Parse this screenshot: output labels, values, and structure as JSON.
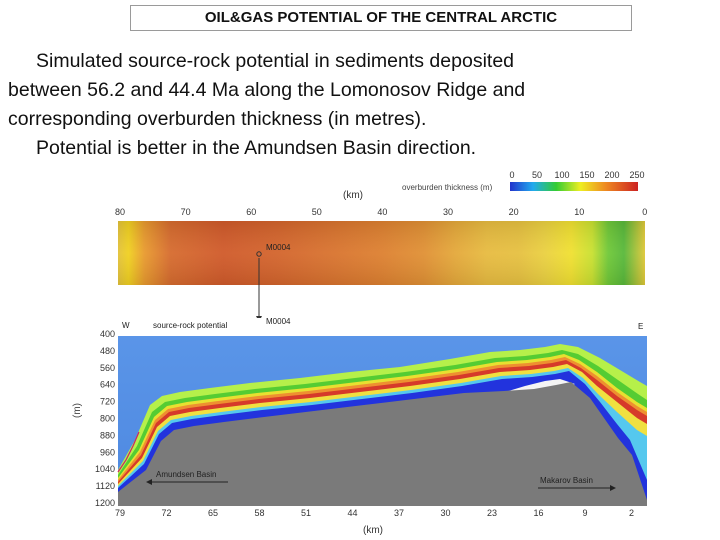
{
  "header": {
    "title": "OIL&GAS POTENTIAL OF THE CENTRAL ARCTIC"
  },
  "caption": {
    "line1": "Simulated source-rock potential in sediments deposited",
    "line2": "between 56.2 and 44.4 Ma along the Lomonosov Ridge and",
    "line3": "corresponding overburden thickness (in metres).",
    "line4": "Potential is better in the Amundsen Basin direction."
  },
  "legend": {
    "ticks": [
      "0",
      "50",
      "100",
      "150",
      "200",
      "250"
    ],
    "label": "overburden thickness (m)",
    "colors": [
      "#2233cc",
      "#22aaee",
      "#33cc33",
      "#eeee22",
      "#ee8822",
      "#cc2222"
    ]
  },
  "top_panel": {
    "axis_label": "(km)",
    "ticks": [
      "80",
      "70",
      "60",
      "50",
      "40",
      "30",
      "20",
      "10",
      "0"
    ],
    "well_label": "M0004"
  },
  "bottom_panel": {
    "west_label": "W",
    "east_label": "E",
    "panel_label": "source-rock potential",
    "well_label": "M0004",
    "y_axis_label": "(m)",
    "y_ticks": [
      "400",
      "480",
      "560",
      "640",
      "720",
      "800",
      "880",
      "960",
      "1040",
      "1120",
      "1200"
    ],
    "x_axis_label": "(km)",
    "x_ticks": [
      "79",
      "72",
      "65",
      "58",
      "51",
      "44",
      "37",
      "30",
      "23",
      "16",
      "9",
      "2"
    ],
    "amundsen_label": "Amundsen Basin",
    "makarov_label": "Makarov Basin",
    "colors": {
      "water": "#5a95e8",
      "sediment": "#7a7a7a"
    }
  }
}
